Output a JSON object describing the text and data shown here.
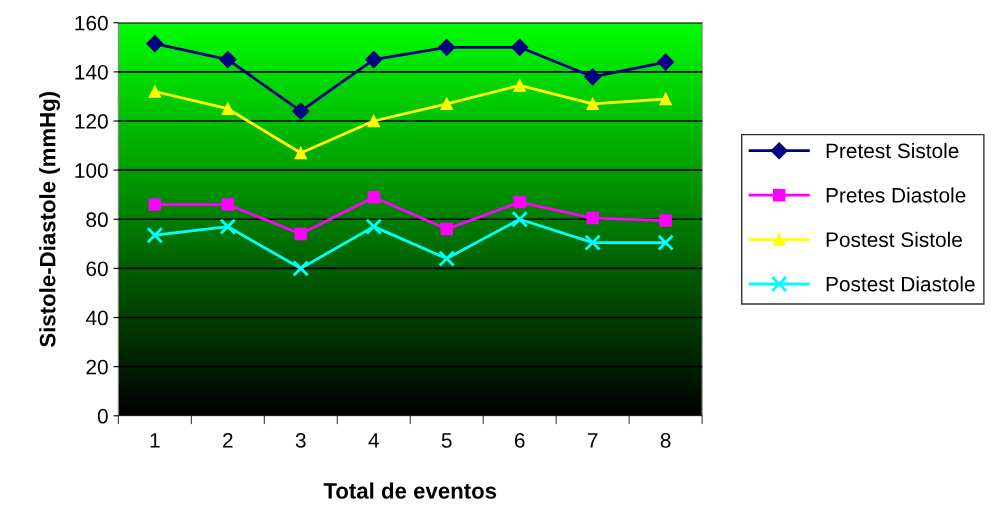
{
  "chart_data": {
    "type": "line",
    "xlabel": "Total de eventos",
    "ylabel": "Sistole-Diastole (mmHg)",
    "categories": [
      "1",
      "2",
      "3",
      "4",
      "5",
      "6",
      "7",
      "8"
    ],
    "series": [
      {
        "name": "Pretest Sistole",
        "color": "#000080",
        "marker": "diamond",
        "values": [
          151.5,
          145,
          124,
          145,
          150,
          150,
          138,
          144
        ]
      },
      {
        "name": "Pretes Diastole",
        "color": "#ff00ff",
        "marker": "square",
        "values": [
          86,
          86,
          74,
          89,
          76,
          87,
          80.5,
          79.5
        ]
      },
      {
        "name": "Postest Sistole",
        "color": "#ffff00",
        "marker": "triangle",
        "values": [
          132,
          125,
          107,
          120,
          127,
          134.5,
          127,
          129
        ]
      },
      {
        "name": "Postest Diastole",
        "color": "#00ffff",
        "marker": "cross",
        "values": [
          73.5,
          77,
          60,
          77,
          64,
          80,
          70.5,
          70.5
        ]
      }
    ],
    "ylim": [
      0,
      160
    ],
    "yticks": [
      0,
      20,
      40,
      60,
      80,
      100,
      120,
      140,
      160
    ],
    "grid": "y",
    "legend": "right"
  }
}
